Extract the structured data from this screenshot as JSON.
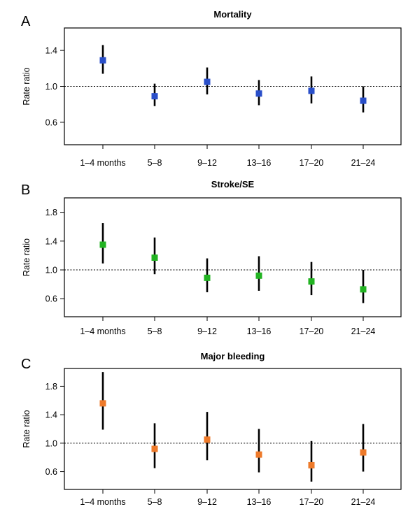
{
  "chart_data": [
    {
      "type": "scatter",
      "panel_letter": "A",
      "title": "Mortality",
      "xlabel": "",
      "ylabel": "Rate ratio",
      "categories": [
        "1–4 months",
        "5–8",
        "9–12",
        "13–16",
        "17–20",
        "21–24"
      ],
      "values": [
        1.29,
        0.89,
        1.05,
        0.92,
        0.95,
        0.84
      ],
      "lower": [
        1.14,
        0.78,
        0.91,
        0.79,
        0.81,
        0.71
      ],
      "upper": [
        1.46,
        1.03,
        1.21,
        1.07,
        1.11,
        1.0
      ],
      "ylim": [
        0.35,
        1.65
      ],
      "yticks": [
        0.6,
        1.0,
        1.4
      ],
      "reference_line": 1.0,
      "marker_color": "#2a4fc9",
      "grid": false
    },
    {
      "type": "scatter",
      "panel_letter": "B",
      "title": "Stroke/SE",
      "xlabel": "",
      "ylabel": "Rate ratio",
      "categories": [
        "1–4 months",
        "5–8",
        "9–12",
        "13–16",
        "17–20",
        "21–24"
      ],
      "values": [
        1.35,
        1.17,
        0.89,
        0.92,
        0.84,
        0.73
      ],
      "lower": [
        1.09,
        0.94,
        0.69,
        0.71,
        0.65,
        0.54
      ],
      "upper": [
        1.65,
        1.45,
        1.16,
        1.19,
        1.11,
        1.0
      ],
      "ylim": [
        0.35,
        2.0
      ],
      "yticks": [
        0.6,
        1.0,
        1.4,
        1.8
      ],
      "reference_line": 1.0,
      "marker_color": "#22b322",
      "grid": false
    },
    {
      "type": "scatter",
      "panel_letter": "C",
      "title": "Major bleeding",
      "xlabel": "",
      "ylabel": "Rate ratio",
      "categories": [
        "1–4 months",
        "5–8",
        "9–12",
        "13–16",
        "17–20",
        "21–24"
      ],
      "values": [
        1.56,
        0.92,
        1.05,
        0.84,
        0.69,
        0.87
      ],
      "lower": [
        1.19,
        0.65,
        0.76,
        0.59,
        0.46,
        0.6
      ],
      "upper": [
        2.0,
        1.28,
        1.44,
        1.2,
        1.03,
        1.27
      ],
      "ylim": [
        0.35,
        2.05
      ],
      "yticks": [
        0.6,
        1.0,
        1.4,
        1.8
      ],
      "reference_line": 1.0,
      "marker_color": "#ee7a2a",
      "grid": false
    }
  ]
}
